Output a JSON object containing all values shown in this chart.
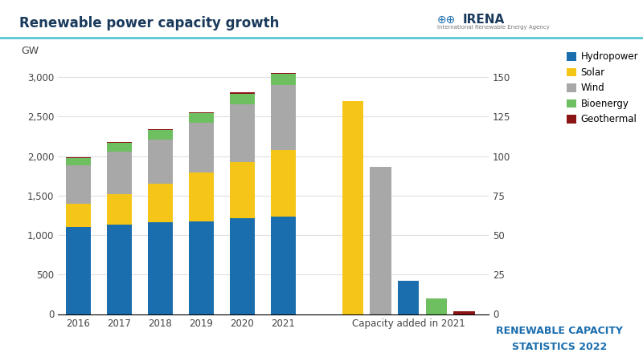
{
  "title": "Renewable power capacity growth",
  "background_color": "#ffffff",
  "years": [
    "2016",
    "2017",
    "2018",
    "2019",
    "2020",
    "2021"
  ],
  "hydro": [
    1100,
    1130,
    1160,
    1175,
    1210,
    1230
  ],
  "solar": [
    295,
    390,
    490,
    620,
    714,
    843
  ],
  "wind": [
    490,
    539,
    564,
    623,
    733,
    825
  ],
  "bioenergy": [
    90,
    105,
    115,
    124,
    133,
    144
  ],
  "geothermal": [
    15,
    15,
    15,
    15,
    15,
    15
  ],
  "added_solar": 135,
  "added_wind": 93,
  "added_hydro": 21,
  "added_bioenergy": 10,
  "added_geothermal": 2,
  "color_hydro": "#1b6eae",
  "color_solar": "#f5c518",
  "color_wind": "#a8a8a8",
  "color_bioenergy": "#6dbf5f",
  "color_geothermal": "#8b1515",
  "right_axis_ticks": [
    0,
    25,
    50,
    75,
    100,
    125,
    150
  ],
  "left_axis_ticks": [
    0,
    500,
    1000,
    1500,
    2000,
    2500,
    3000
  ],
  "legend_labels": [
    "Hydropower",
    "Solar",
    "Wind",
    "Bioenergy",
    "Geothermal"
  ],
  "footer_line1": "RENEWABLE CAPACITY",
  "footer_line2": "STATISTICS 2022",
  "title_color": "#1a3a5c",
  "footer_color": "#1b6eae",
  "separator_color": "#5bc8d4"
}
